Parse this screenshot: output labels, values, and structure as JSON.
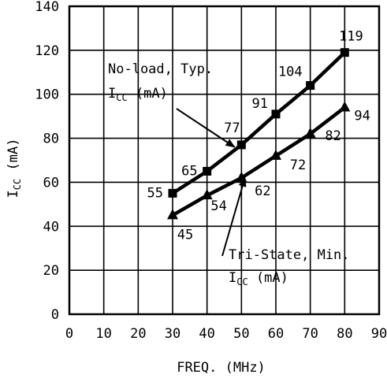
{
  "chart_data": {
    "type": "line",
    "xlabel": "FREQ. (MHz)",
    "ylabel_main": "I",
    "ylabel_sub": "CC",
    "ylabel_unit": " (mA)",
    "xlim": [
      0,
      90
    ],
    "ylim": [
      0,
      140
    ],
    "xticks": [
      0,
      10,
      20,
      30,
      40,
      50,
      60,
      70,
      80,
      90
    ],
    "yticks": [
      0,
      20,
      40,
      60,
      80,
      100,
      120,
      140
    ],
    "grid": true,
    "series": [
      {
        "marker": "square",
        "color": "#000000",
        "x": [
          30,
          40,
          50,
          60,
          70,
          80
        ],
        "y": [
          55,
          65,
          77,
          91,
          104,
          119
        ],
        "labels": [
          "55",
          "65",
          "77",
          "91",
          "104",
          "119"
        ]
      },
      {
        "marker": "triangle",
        "color": "#000000",
        "x": [
          30,
          40,
          50,
          60,
          70,
          80
        ],
        "y": [
          45,
          54,
          62,
          72,
          82,
          94
        ],
        "labels": [
          "45",
          "54",
          "62",
          "72",
          "82",
          "94"
        ]
      }
    ],
    "annotations": [
      {
        "line1": "No-load, Typ.",
        "line2_main": "I",
        "line2_sub": "CC",
        "line2_unit": " (mA)",
        "arrow_to_x": 48,
        "arrow_to_y": 76
      },
      {
        "line1": "Tri-State, Min.",
        "line2_main": "I",
        "line2_sub": "CC",
        "line2_unit": " (mA)",
        "arrow_to_x": 51,
        "arrow_to_y": 62
      }
    ]
  }
}
